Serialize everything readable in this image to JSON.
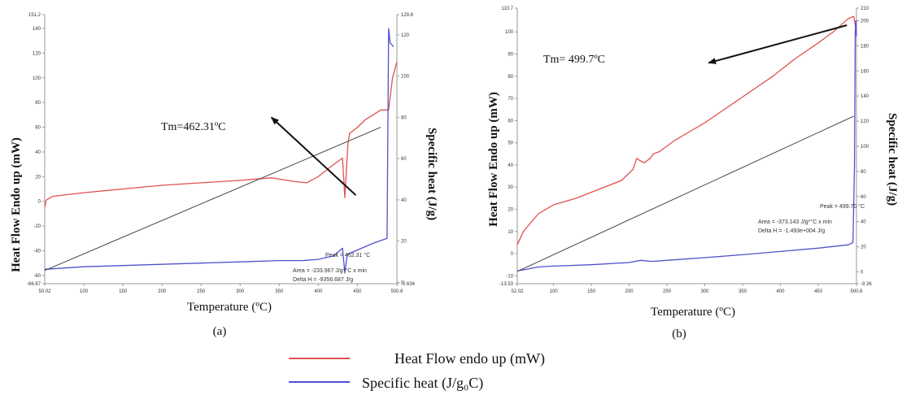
{
  "chart_data": [
    {
      "type": "line",
      "panel_label": "(a)",
      "xlabel": "Temperature (ºC)",
      "ylabel_left": "Heat Flow Endo up (mW)",
      "ylabel_right": "Specific heat (J/g)",
      "xlim": [
        50.02,
        500.6
      ],
      "ylim_left": [
        -66.67,
        151.2
      ],
      "ylim_right": [
        -0.634,
        129.8
      ],
      "x_ticks": [
        "50.02",
        "100",
        "150",
        "200",
        "250",
        "300",
        "350",
        "400",
        "450",
        "500.6"
      ],
      "left_ticks": [
        "151.2",
        "140",
        "120",
        "100",
        "80",
        "60",
        "40",
        "20",
        "0",
        "-20",
        "-40",
        "-60",
        "-66.67"
      ],
      "right_ticks": [
        "129.8",
        "120",
        "100",
        "80",
        "60",
        "40",
        "20",
        "0",
        "-0.634"
      ],
      "annotation": {
        "text": "Tm=462.31ºC",
        "arrow_from": [
          448,
          5
        ],
        "arrow_to": [
          340,
          68
        ],
        "text_at": [
          270,
          85
        ]
      },
      "peak_text": "Peak = 462.31 °C",
      "area_text": "Area = -233.967 J/g*°C x min",
      "delta_text": "Delta H = -9356.687 J/g",
      "series": [
        {
          "color": "#e05050",
          "axis": "left",
          "points": [
            [
              50.02,
              -5
            ],
            [
              52,
              1
            ],
            [
              60,
              4
            ],
            [
              100,
              7
            ],
            [
              150,
              10
            ],
            [
              200,
              13
            ],
            [
              250,
              15
            ],
            [
              300,
              17
            ],
            [
              340,
              19
            ],
            [
              350,
              18
            ],
            [
              370,
              16
            ],
            [
              385,
              15
            ],
            [
              400,
              20
            ],
            [
              420,
              30
            ],
            [
              431,
              35
            ],
            [
              434,
              3
            ],
            [
              438,
              47
            ],
            [
              440,
              55
            ],
            [
              450,
              60
            ],
            [
              460,
              66
            ],
            [
              470,
              70
            ],
            [
              480,
              74
            ],
            [
              490,
              74
            ],
            [
              495,
              100
            ],
            [
              500.6,
              113
            ]
          ]
        },
        {
          "color": "#5050d0",
          "axis": "left",
          "points": [
            [
              50.02,
              -55
            ],
            [
              100,
              -53
            ],
            [
              150,
              -52
            ],
            [
              200,
              -51
            ],
            [
              250,
              -50
            ],
            [
              300,
              -49
            ],
            [
              350,
              -48
            ],
            [
              380,
              -48
            ],
            [
              400,
              -47
            ],
            [
              420,
              -44
            ],
            [
              431,
              -38
            ],
            [
              434,
              -58
            ],
            [
              437,
              -43
            ],
            [
              470,
              -34
            ],
            [
              488,
              -30
            ],
            [
              490,
              140
            ],
            [
              492,
              128
            ],
            [
              494,
              127
            ],
            [
              496,
              125
            ]
          ]
        },
        {
          "color": "#444444",
          "axis": "left",
          "points": [
            [
              50.02,
              -56
            ],
            [
              480,
              60
            ]
          ]
        }
      ]
    },
    {
      "type": "line",
      "panel_label": "(b)",
      "xlabel": "Temperature (ºC)",
      "ylabel_left": "Heat Flow Endo up (mW)",
      "ylabel_right": "Specific heat (J/g)",
      "xlim": [
        52.02,
        500.6
      ],
      "ylim_left": [
        -13.53,
        110.7
      ],
      "ylim_right": [
        -9.36,
        210
      ],
      "x_ticks": [
        "52.02",
        "100",
        "150",
        "200",
        "250",
        "300",
        "350",
        "400",
        "450",
        "500.6"
      ],
      "left_ticks": [
        "110.7",
        "100",
        "90",
        "80",
        "70",
        "60",
        "50",
        "40",
        "30",
        "20",
        "10",
        "0",
        "-10",
        "-13.53"
      ],
      "right_ticks": [
        "210",
        "200",
        "180",
        "160",
        "140",
        "120",
        "100",
        "80",
        "60",
        "40",
        "20",
        "0",
        "-9.36"
      ],
      "annotation": {
        "text": "Tm= 499.7ºC",
        "arrow_from": [
          488,
          103
        ],
        "arrow_to": [
          305,
          86
        ],
        "text_at": [
          120,
          87
        ]
      },
      "peak_text": "Peak = 499.70 °C",
      "area_text": "Area = -373.143 J/g*°C x min",
      "delta_text": "Delta H = -1.493e+004 J/g",
      "series": [
        {
          "color": "#e05050",
          "axis": "left",
          "points": [
            [
              52.02,
              4
            ],
            [
              60,
              10
            ],
            [
              80,
              18
            ],
            [
              100,
              22
            ],
            [
              130,
              25
            ],
            [
              160,
              29
            ],
            [
              190,
              33
            ],
            [
              205,
              38
            ],
            [
              210,
              43
            ],
            [
              214,
              42
            ],
            [
              220,
              41
            ],
            [
              228,
              43
            ],
            [
              232,
              45
            ],
            [
              240,
              46
            ],
            [
              260,
              51
            ],
            [
              280,
              55
            ],
            [
              300,
              59
            ],
            [
              330,
              66
            ],
            [
              360,
              73
            ],
            [
              390,
              80
            ],
            [
              420,
              88
            ],
            [
              450,
              95
            ],
            [
              470,
              100
            ],
            [
              490,
              106
            ],
            [
              497,
              107
            ],
            [
              500.6,
              100
            ]
          ]
        },
        {
          "color": "#5050d0",
          "axis": "left",
          "points": [
            [
              52.02,
              -7.8
            ],
            [
              80,
              -6
            ],
            [
              100,
              -5.6
            ],
            [
              150,
              -5
            ],
            [
              200,
              -4
            ],
            [
              215,
              -3
            ],
            [
              230,
              -3.5
            ],
            [
              250,
              -3
            ],
            [
              300,
              -1.8
            ],
            [
              350,
              -0.5
            ],
            [
              400,
              1
            ],
            [
              450,
              2.5
            ],
            [
              490,
              4
            ],
            [
              496,
              5
            ],
            [
              498,
              40
            ],
            [
              499,
              100
            ],
            [
              500,
              105
            ],
            [
              500.6,
              98
            ]
          ]
        },
        {
          "color": "#444444",
          "axis": "left",
          "points": [
            [
              52.02,
              -8
            ],
            [
              497,
              62
            ]
          ]
        }
      ]
    }
  ],
  "legend": [
    {
      "label": "Heat Flow endo up (mW)",
      "color": "#e05050"
    },
    {
      "label": "Specific heat (J/g₀C)",
      "color": "#5050d0"
    }
  ]
}
